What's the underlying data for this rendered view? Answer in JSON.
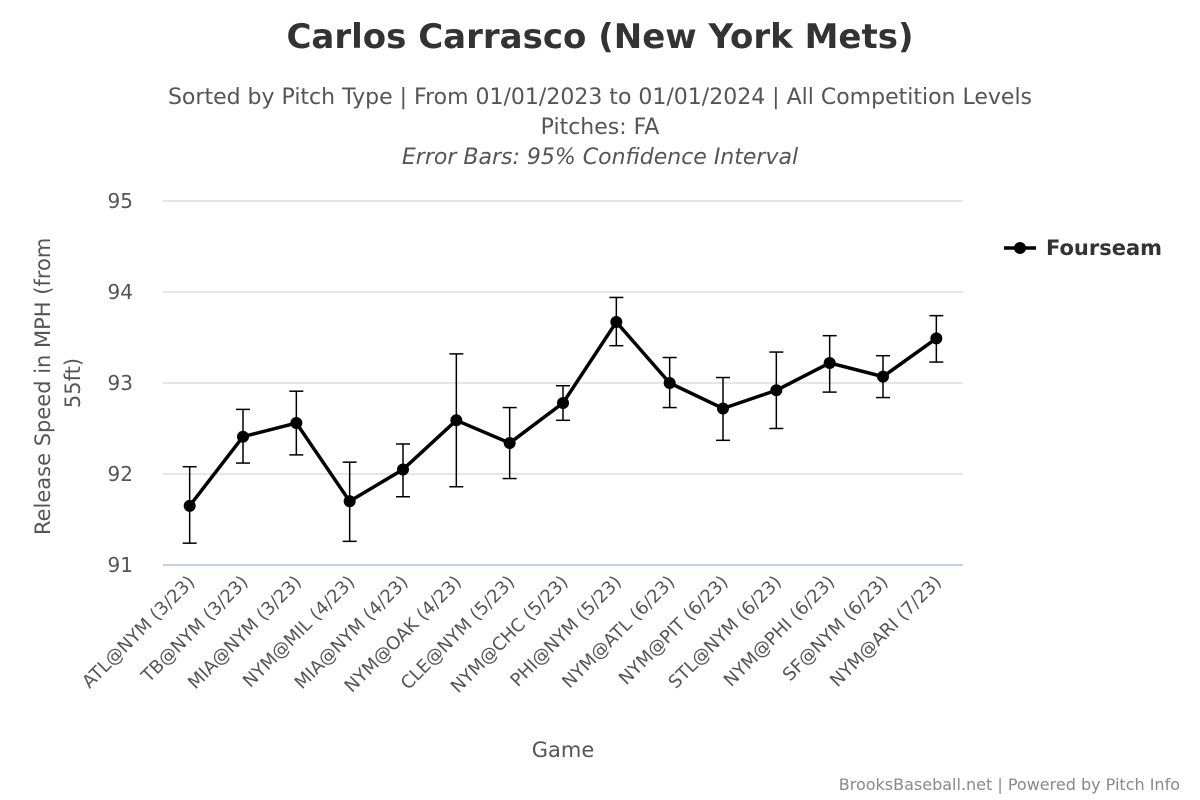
{
  "chart_data": {
    "type": "line",
    "title": "Carlos Carrasco (New York Mets)",
    "subtitle_lines": [
      "Sorted by Pitch Type | From 01/01/2023 to 01/01/2024 | All Competition Levels",
      "Pitches: FA"
    ],
    "subtitle_italic": "Error Bars: 95% Confidence Interval",
    "xlabel": "Game",
    "ylabel_lines": [
      "Release Speed in MPH (from",
      "55ft)"
    ],
    "ylim": [
      91,
      95
    ],
    "yticks": [
      "91",
      "92",
      "93",
      "94",
      "95"
    ],
    "grid": true,
    "legend_position": "right",
    "categories": [
      "ATL@NYM (3/23)",
      "TB@NYM (3/23)",
      "MIA@NYM (3/23)",
      "NYM@MIL (4/23)",
      "MIA@NYM (4/23)",
      "NYM@OAK (4/23)",
      "CLE@NYM (5/23)",
      "NYM@CHC (5/23)",
      "PHI@NYM (5/23)",
      "NYM@ATL (6/23)",
      "NYM@PIT (6/23)",
      "STL@NYM (6/23)",
      "NYM@PHI (6/23)",
      "SF@NYM (6/23)",
      "NYM@ARI (7/23)"
    ],
    "series": [
      {
        "name": "Fourseam",
        "color": "#000000",
        "values": [
          91.65,
          92.41,
          92.56,
          91.7,
          92.05,
          92.59,
          92.34,
          92.78,
          93.67,
          93.0,
          92.72,
          92.92,
          93.22,
          93.07,
          93.49
        ],
        "error_low": [
          91.24,
          92.12,
          92.21,
          91.26,
          91.75,
          91.86,
          91.95,
          92.59,
          93.41,
          92.73,
          92.37,
          92.5,
          92.9,
          92.84,
          93.23
        ],
        "error_high": [
          92.08,
          92.71,
          92.91,
          92.13,
          92.33,
          93.32,
          92.73,
          92.97,
          93.94,
          93.28,
          93.06,
          93.34,
          93.52,
          93.3,
          93.74
        ]
      }
    ]
  },
  "credits": "BrooksBaseball.net | Powered by Pitch Info",
  "colors": {
    "gridline": "#dddddd",
    "axis_line": "#c0d0e0",
    "series": "#000000"
  }
}
